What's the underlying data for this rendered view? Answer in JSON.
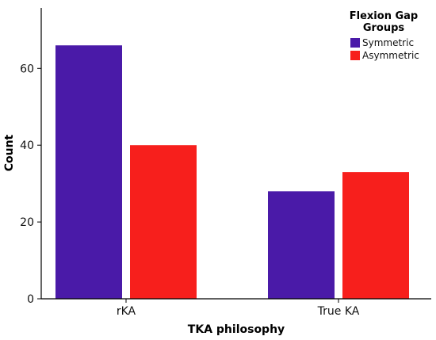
{
  "chart_data": {
    "type": "bar",
    "categories": [
      "rKA",
      "True KA"
    ],
    "series": [
      {
        "name": "Symmetric",
        "values": [
          66,
          28
        ],
        "color": "#4a1aa8"
      },
      {
        "name": "Asymmetric",
        "values": [
          40,
          33
        ],
        "color": "#f71f1c"
      }
    ],
    "title": "",
    "xlabel": "TKA philosophy",
    "ylabel": "Count",
    "ylim": [
      0,
      73
    ],
    "yticks": [
      0,
      20,
      40,
      60
    ],
    "grid": false,
    "legend": {
      "title_lines": [
        "Flexion Gap",
        "Groups"
      ],
      "placement": "top-right"
    }
  }
}
